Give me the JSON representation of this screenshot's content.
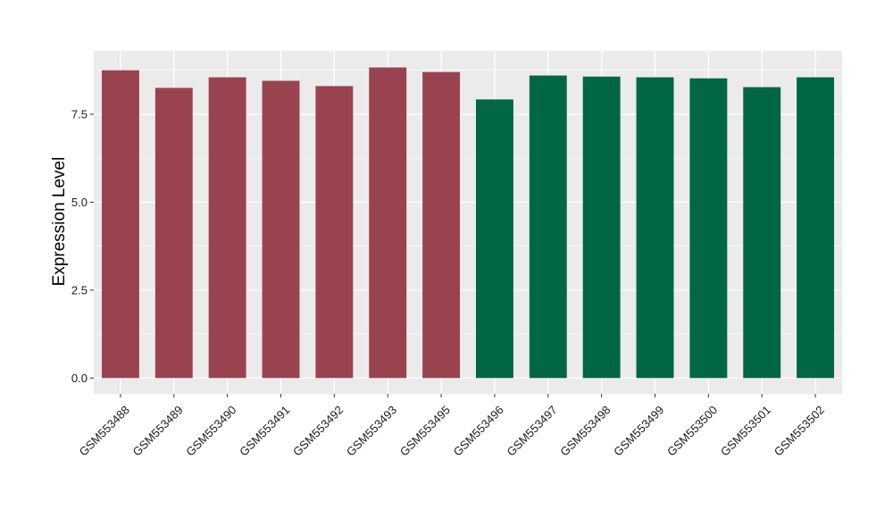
{
  "chart_data": {
    "type": "bar",
    "title": "",
    "xlabel": "",
    "ylabel": "Expression Level",
    "categories": [
      "GSM553488",
      "GSM553489",
      "GSM553490",
      "GSM553491",
      "GSM553492",
      "GSM553493",
      "GSM553495",
      "GSM553496",
      "GSM553497",
      "GSM553498",
      "GSM553499",
      "GSM553500",
      "GSM553501",
      "GSM553502"
    ],
    "values": [
      8.75,
      8.25,
      8.55,
      8.45,
      8.3,
      8.83,
      8.7,
      7.92,
      8.6,
      8.57,
      8.55,
      8.52,
      8.27,
      8.55
    ],
    "bar_colors": [
      "#9a4350",
      "#9a4350",
      "#9a4350",
      "#9a4350",
      "#9a4350",
      "#9a4350",
      "#9a4350",
      "#006644",
      "#006644",
      "#006644",
      "#006644",
      "#006644",
      "#006644",
      "#006644"
    ],
    "ylim": [
      -0.45,
      9.3
    ],
    "yticks": [
      0,
      2.5,
      5,
      7.5
    ],
    "ytick_labels": [
      "0.0",
      "2.5",
      "5.0",
      "7.5"
    ],
    "grid": true,
    "legend": "none",
    "panel_background": "#ebebeb",
    "gridline_color": "#ffffff"
  }
}
